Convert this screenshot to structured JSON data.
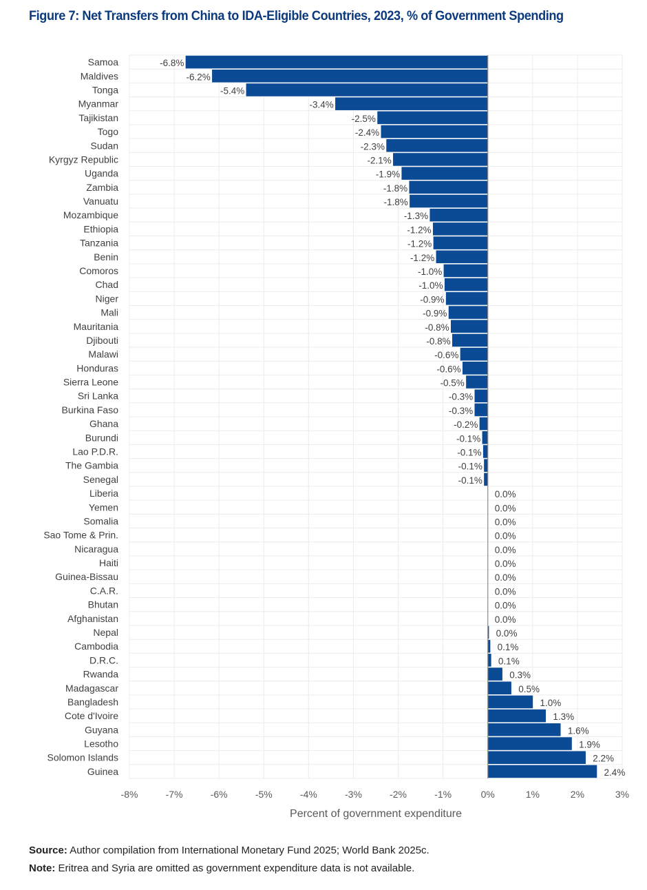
{
  "title": "Figure 7: Net Transfers from China to IDA-Eligible Countries, 2023, % of Government Spending",
  "footer": {
    "source_label": "Source:",
    "source_text": " Author compilation from International Monetary Fund 2025; World Bank 2025c.",
    "note_label": "Note:",
    "note_text": " Eritrea and Syria are omitted as government expenditure data is not available."
  },
  "chart_data": {
    "type": "bar",
    "orientation": "horizontal",
    "title": "Figure 7: Net Transfers from China to IDA-Eligible Countries, 2023, % of Government Spending",
    "xlabel": "Percent of government expenditure",
    "ylabel": "",
    "xlim": [
      -8,
      3
    ],
    "xticks": [
      -8,
      -7,
      -6,
      -5,
      -4,
      -3,
      -2,
      -1,
      0,
      1,
      2,
      3
    ],
    "xtick_labels": [
      "-8%",
      "-7%",
      "-6%",
      "-5%",
      "-4%",
      "-3%",
      "-2%",
      "-1%",
      "0%",
      "1%",
      "2%",
      "3%"
    ],
    "grid": true,
    "legend": "none",
    "bar_color": "#0b4a94",
    "categories": [
      "Samoa",
      "Maldives",
      "Tonga",
      "Myanmar",
      "Tajikistan",
      "Togo",
      "Sudan",
      "Kyrgyz Republic",
      "Uganda",
      "Zambia",
      "Vanuatu",
      "Mozambique",
      "Ethiopia",
      "Tanzania",
      "Benin",
      "Comoros",
      "Chad",
      "Niger",
      "Mali",
      "Mauritania",
      "Djibouti",
      "Malawi",
      "Honduras",
      "Sierra Leone",
      "Sri Lanka",
      "Burkina Faso",
      "Ghana",
      "Burundi",
      "Lao P.D.R.",
      "The Gambia",
      "Senegal",
      "Liberia",
      "Yemen",
      "Somalia",
      "Sao Tome & Prin.",
      "Nicaragua",
      "Haiti",
      "Guinea-Bissau",
      "C.A.R.",
      "Bhutan",
      "Afghanistan",
      "Nepal",
      "Cambodia",
      "D.R.C.",
      "Rwanda",
      "Madagascar",
      "Bangladesh",
      "Cote d'Ivoire",
      "Guyana",
      "Lesotho",
      "Solomon Islands",
      "Guinea"
    ],
    "values": [
      -6.75,
      -6.16,
      -5.4,
      -3.41,
      -2.47,
      -2.39,
      -2.27,
      -2.12,
      -1.93,
      -1.76,
      -1.75,
      -1.3,
      -1.23,
      -1.22,
      -1.16,
      -0.99,
      -0.97,
      -0.94,
      -0.88,
      -0.83,
      -0.8,
      -0.62,
      -0.57,
      -0.49,
      -0.3,
      -0.3,
      -0.19,
      -0.13,
      -0.11,
      -0.09,
      -0.09,
      0.0,
      0.0,
      0.0,
      0.0,
      0.0,
      0.0,
      0.0,
      0.0,
      0.0,
      0.0,
      0.03,
      0.06,
      0.08,
      0.33,
      0.53,
      1.01,
      1.3,
      1.63,
      1.88,
      2.19,
      2.44
    ],
    "data_labels": [
      "-6.8%",
      "-6.2%",
      "-5.4%",
      "-3.4%",
      "-2.5%",
      "-2.4%",
      "-2.3%",
      "-2.1%",
      "-1.9%",
      "-1.8%",
      "-1.8%",
      "-1.3%",
      "-1.2%",
      "-1.2%",
      "-1.2%",
      "-1.0%",
      "-1.0%",
      "-0.9%",
      "-0.9%",
      "-0.8%",
      "-0.8%",
      "-0.6%",
      "-0.6%",
      "-0.5%",
      "-0.3%",
      "-0.3%",
      "-0.2%",
      "-0.1%",
      "-0.1%",
      "-0.1%",
      "-0.1%",
      "0.0%",
      "0.0%",
      "0.0%",
      "0.0%",
      "0.0%",
      "0.0%",
      "0.0%",
      "0.0%",
      "0.0%",
      "0.0%",
      "0.0%",
      "0.1%",
      "0.1%",
      "0.3%",
      "0.5%",
      "1.0%",
      "1.3%",
      "1.6%",
      "1.9%",
      "2.2%",
      "2.4%"
    ]
  }
}
